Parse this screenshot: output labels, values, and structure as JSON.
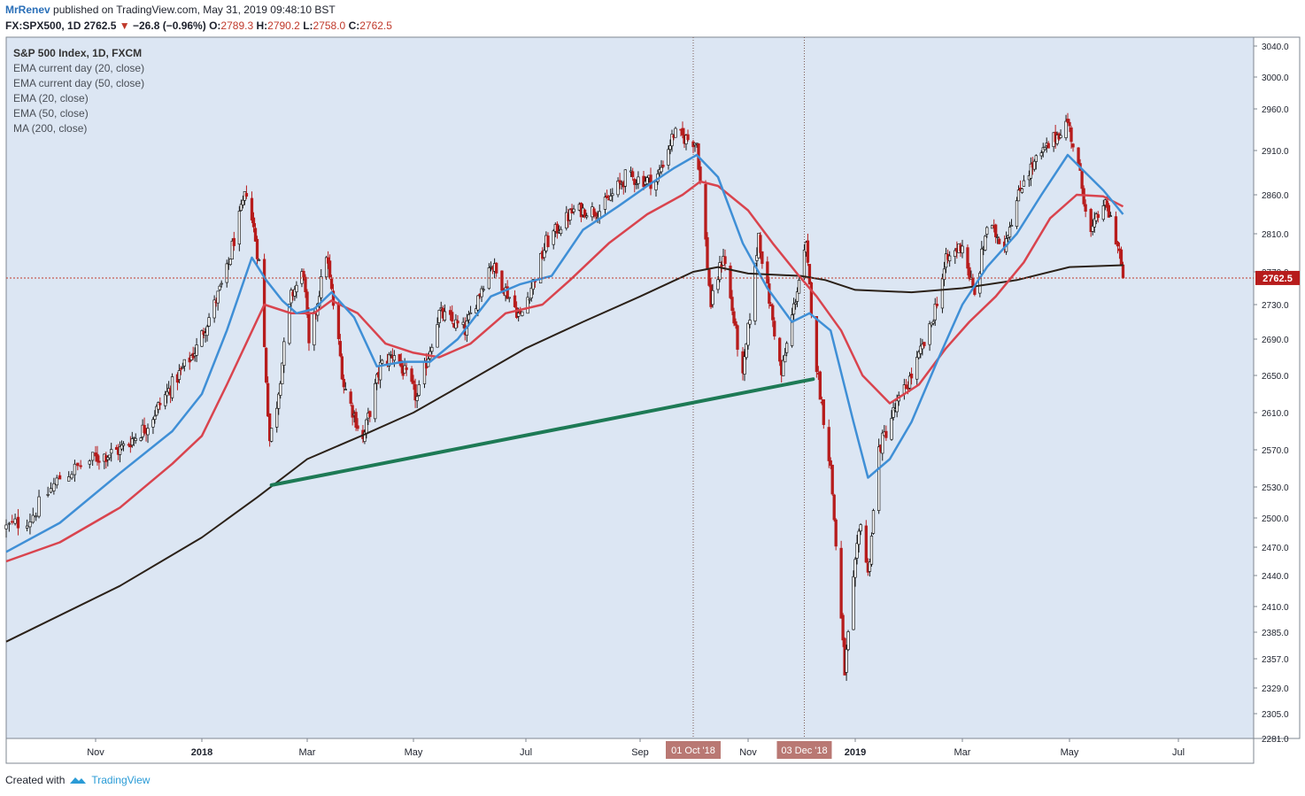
{
  "header": {
    "author": "MrRenev",
    "published": "published on TradingView.com, May 31, 2019 09:48:10 BST",
    "symbol": "FX:SPX500, 1D",
    "last": "2762.5",
    "change": "−26.8 (−0.96%)",
    "o_label": "O:",
    "o_val": "2789.3",
    "h_label": "H:",
    "h_val": "2790.2",
    "l_label": "L:",
    "l_val": "2758.0",
    "c_label": "C:",
    "c_val": "2762.5"
  },
  "legend": [
    "S&P 500 Index, 1D, FXCM",
    "EMA current day (20, close)",
    "EMA current day (50, close)",
    "EMA (20, close)",
    "EMA (50, close)",
    "MA (200, close)"
  ],
  "footer": {
    "created_with": "Created with",
    "brand": "TradingView"
  },
  "colors": {
    "background": "#dce6f3",
    "up": "#1a1a1a",
    "down": "#b71c1c",
    "ema20": "#3f8fd6",
    "ema50": "#d9444e",
    "ma200": "#2b2118",
    "trendline": "#1d7a55",
    "marker": "#b97873",
    "price_line": "#c0392b"
  },
  "chart_data": {
    "type": "candlestick",
    "symbol": "FX:SPX500",
    "interval": "1D",
    "x_range": [
      "2017-10-02",
      "2019-07-31"
    ],
    "ylim": [
      2281,
      3050
    ],
    "y_ticks": [
      3040.0,
      3000.0,
      2960.0,
      2910.0,
      2860.0,
      2810.0,
      2770.0,
      2730.0,
      2690.0,
      2650.0,
      2610.0,
      2570.0,
      2530.0,
      2500.0,
      2470.0,
      2440.0,
      2410.0,
      2385.0,
      2357.0,
      2329.0,
      2305.0,
      2281.0
    ],
    "x_ticks": [
      {
        "label": "Nov",
        "date": "2017-11-01",
        "bold": false
      },
      {
        "label": "2018",
        "date": "2018-01-01",
        "bold": true
      },
      {
        "label": "Mar",
        "date": "2018-03-01",
        "bold": false
      },
      {
        "label": "May",
        "date": "2018-05-01",
        "bold": false
      },
      {
        "label": "Jul",
        "date": "2018-07-01",
        "bold": false
      },
      {
        "label": "Sep",
        "date": "2018-09-01",
        "bold": false
      },
      {
        "label": "Nov",
        "date": "2018-11-01",
        "bold": false
      },
      {
        "label": "2019",
        "date": "2019-01-01",
        "bold": true
      },
      {
        "label": "Mar",
        "date": "2019-03-01",
        "bold": false
      },
      {
        "label": "May",
        "date": "2019-05-01",
        "bold": false
      },
      {
        "label": "Jul",
        "date": "2019-07-01",
        "bold": false
      }
    ],
    "markers": [
      {
        "label": "01 Oct '18",
        "date": "2018-10-01"
      },
      {
        "label": "03 Dec '18",
        "date": "2018-12-03"
      }
    ],
    "last_price": {
      "label": "2762.5",
      "value": 2762.5
    },
    "trendline": [
      {
        "date": "2018-02-09",
        "value": 2532
      },
      {
        "date": "2018-12-08",
        "value": 2646
      }
    ],
    "price_path": [
      [
        "2017-10-02",
        2490
      ],
      [
        "2017-10-10",
        2500
      ],
      [
        "2017-10-20",
        2540
      ],
      [
        "2017-10-31",
        2560
      ],
      [
        "2017-11-15",
        2570
      ],
      [
        "2017-11-30",
        2595
      ],
      [
        "2017-12-15",
        2640
      ],
      [
        "2017-12-29",
        2680
      ],
      [
        "2018-01-08",
        2730
      ],
      [
        "2018-01-15",
        2770
      ],
      [
        "2018-01-26",
        2865
      ],
      [
        "2018-02-02",
        2780
      ],
      [
        "2018-02-08",
        2580
      ],
      [
        "2018-02-12",
        2620
      ],
      [
        "2018-02-20",
        2740
      ],
      [
        "2018-02-27",
        2770
      ],
      [
        "2018-03-02",
        2680
      ],
      [
        "2018-03-12",
        2790
      ],
      [
        "2018-03-22",
        2640
      ],
      [
        "2018-04-02",
        2580
      ],
      [
        "2018-04-12",
        2660
      ],
      [
        "2018-04-20",
        2675
      ],
      [
        "2018-05-03",
        2625
      ],
      [
        "2018-05-15",
        2720
      ],
      [
        "2018-05-29",
        2700
      ],
      [
        "2018-06-12",
        2780
      ],
      [
        "2018-06-28",
        2715
      ],
      [
        "2018-07-12",
        2800
      ],
      [
        "2018-07-27",
        2840
      ],
      [
        "2018-08-10",
        2840
      ],
      [
        "2018-08-24",
        2880
      ],
      [
        "2018-09-10",
        2875
      ],
      [
        "2018-09-20",
        2930
      ],
      [
        "2018-10-03",
        2920
      ],
      [
        "2018-10-11",
        2730
      ],
      [
        "2018-10-18",
        2790
      ],
      [
        "2018-10-29",
        2645
      ],
      [
        "2018-11-07",
        2810
      ],
      [
        "2018-11-20",
        2650
      ],
      [
        "2018-11-30",
        2760
      ],
      [
        "2018-12-04",
        2795
      ],
      [
        "2018-12-10",
        2660
      ],
      [
        "2018-12-18",
        2550
      ],
      [
        "2018-12-26",
        2345
      ],
      [
        "2019-01-04",
        2500
      ],
      [
        "2019-01-08",
        2440
      ],
      [
        "2019-01-14",
        2570
      ],
      [
        "2019-01-22",
        2610
      ],
      [
        "2019-02-01",
        2650
      ],
      [
        "2019-02-11",
        2700
      ],
      [
        "2019-02-20",
        2780
      ],
      [
        "2019-03-01",
        2800
      ],
      [
        "2019-03-08",
        2740
      ],
      [
        "2019-03-15",
        2820
      ],
      [
        "2019-03-25",
        2800
      ],
      [
        "2019-04-05",
        2880
      ],
      [
        "2019-04-15",
        2905
      ],
      [
        "2019-04-30",
        2945
      ],
      [
        "2019-05-07",
        2880
      ],
      [
        "2019-05-13",
        2810
      ],
      [
        "2019-05-20",
        2850
      ],
      [
        "2019-05-24",
        2830
      ],
      [
        "2019-05-29",
        2790
      ],
      [
        "2019-05-31",
        2762.5
      ]
    ],
    "ema20": [
      [
        "2017-10-02",
        2465
      ],
      [
        "2017-10-20",
        2495
      ],
      [
        "2017-11-15",
        2545
      ],
      [
        "2017-12-15",
        2590
      ],
      [
        "2018-01-01",
        2630
      ],
      [
        "2018-01-15",
        2700
      ],
      [
        "2018-01-29",
        2785
      ],
      [
        "2018-02-06",
        2760
      ],
      [
        "2018-02-15",
        2735
      ],
      [
        "2018-02-23",
        2720
      ],
      [
        "2018-03-05",
        2725
      ],
      [
        "2018-03-15",
        2745
      ],
      [
        "2018-03-28",
        2715
      ],
      [
        "2018-04-10",
        2660
      ],
      [
        "2018-04-25",
        2665
      ],
      [
        "2018-05-10",
        2665
      ],
      [
        "2018-05-25",
        2690
      ],
      [
        "2018-06-12",
        2740
      ],
      [
        "2018-06-28",
        2755
      ],
      [
        "2018-07-15",
        2765
      ],
      [
        "2018-08-01",
        2815
      ],
      [
        "2018-08-20",
        2845
      ],
      [
        "2018-09-05",
        2870
      ],
      [
        "2018-09-20",
        2890
      ],
      [
        "2018-10-03",
        2905
      ],
      [
        "2018-10-15",
        2880
      ],
      [
        "2018-10-29",
        2800
      ],
      [
        "2018-11-12",
        2750
      ],
      [
        "2018-11-26",
        2710
      ],
      [
        "2018-12-06",
        2720
      ],
      [
        "2018-12-18",
        2700
      ],
      [
        "2018-12-31",
        2600
      ],
      [
        "2019-01-08",
        2540
      ],
      [
        "2019-01-20",
        2560
      ],
      [
        "2019-02-01",
        2600
      ],
      [
        "2019-02-15",
        2665
      ],
      [
        "2019-03-01",
        2730
      ],
      [
        "2019-03-15",
        2775
      ],
      [
        "2019-04-01",
        2810
      ],
      [
        "2019-04-15",
        2860
      ],
      [
        "2019-04-30",
        2905
      ],
      [
        "2019-05-10",
        2885
      ],
      [
        "2019-05-20",
        2865
      ],
      [
        "2019-05-31",
        2835
      ]
    ],
    "ema50": [
      [
        "2017-10-02",
        2455
      ],
      [
        "2017-10-20",
        2475
      ],
      [
        "2017-11-15",
        2510
      ],
      [
        "2017-12-15",
        2555
      ],
      [
        "2018-01-01",
        2585
      ],
      [
        "2018-01-15",
        2640
      ],
      [
        "2018-02-05",
        2730
      ],
      [
        "2018-02-20",
        2720
      ],
      [
        "2018-03-05",
        2720
      ],
      [
        "2018-03-15",
        2735
      ],
      [
        "2018-03-30",
        2720
      ],
      [
        "2018-04-15",
        2685
      ],
      [
        "2018-05-01",
        2675
      ],
      [
        "2018-05-15",
        2670
      ],
      [
        "2018-06-01",
        2685
      ],
      [
        "2018-06-20",
        2720
      ],
      [
        "2018-07-10",
        2730
      ],
      [
        "2018-07-25",
        2760
      ],
      [
        "2018-08-15",
        2800
      ],
      [
        "2018-09-05",
        2835
      ],
      [
        "2018-09-25",
        2860
      ],
      [
        "2018-10-05",
        2875
      ],
      [
        "2018-10-15",
        2870
      ],
      [
        "2018-11-01",
        2840
      ],
      [
        "2018-11-15",
        2800
      ],
      [
        "2018-11-30",
        2765
      ],
      [
        "2018-12-10",
        2740
      ],
      [
        "2018-12-24",
        2700
      ],
      [
        "2019-01-05",
        2650
      ],
      [
        "2019-01-20",
        2620
      ],
      [
        "2019-02-05",
        2640
      ],
      [
        "2019-02-20",
        2680
      ],
      [
        "2019-03-05",
        2710
      ],
      [
        "2019-03-20",
        2740
      ],
      [
        "2019-04-05",
        2780
      ],
      [
        "2019-04-20",
        2830
      ],
      [
        "2019-05-05",
        2860
      ],
      [
        "2019-05-20",
        2858
      ],
      [
        "2019-05-31",
        2845
      ]
    ],
    "ma200": [
      [
        "2017-10-02",
        2375
      ],
      [
        "2017-11-15",
        2430
      ],
      [
        "2018-01-01",
        2480
      ],
      [
        "2018-02-01",
        2520
      ],
      [
        "2018-03-01",
        2560
      ],
      [
        "2018-04-01",
        2585
      ],
      [
        "2018-05-01",
        2610
      ],
      [
        "2018-06-01",
        2645
      ],
      [
        "2018-07-01",
        2680
      ],
      [
        "2018-08-01",
        2710
      ],
      [
        "2018-09-01",
        2740
      ],
      [
        "2018-10-01",
        2770
      ],
      [
        "2018-10-15",
        2775
      ],
      [
        "2018-11-01",
        2768
      ],
      [
        "2018-12-01",
        2765
      ],
      [
        "2018-12-15",
        2760
      ],
      [
        "2019-01-01",
        2748
      ],
      [
        "2019-02-01",
        2745
      ],
      [
        "2019-03-01",
        2750
      ],
      [
        "2019-04-01",
        2760
      ],
      [
        "2019-05-01",
        2775
      ],
      [
        "2019-05-31",
        2777
      ]
    ]
  }
}
